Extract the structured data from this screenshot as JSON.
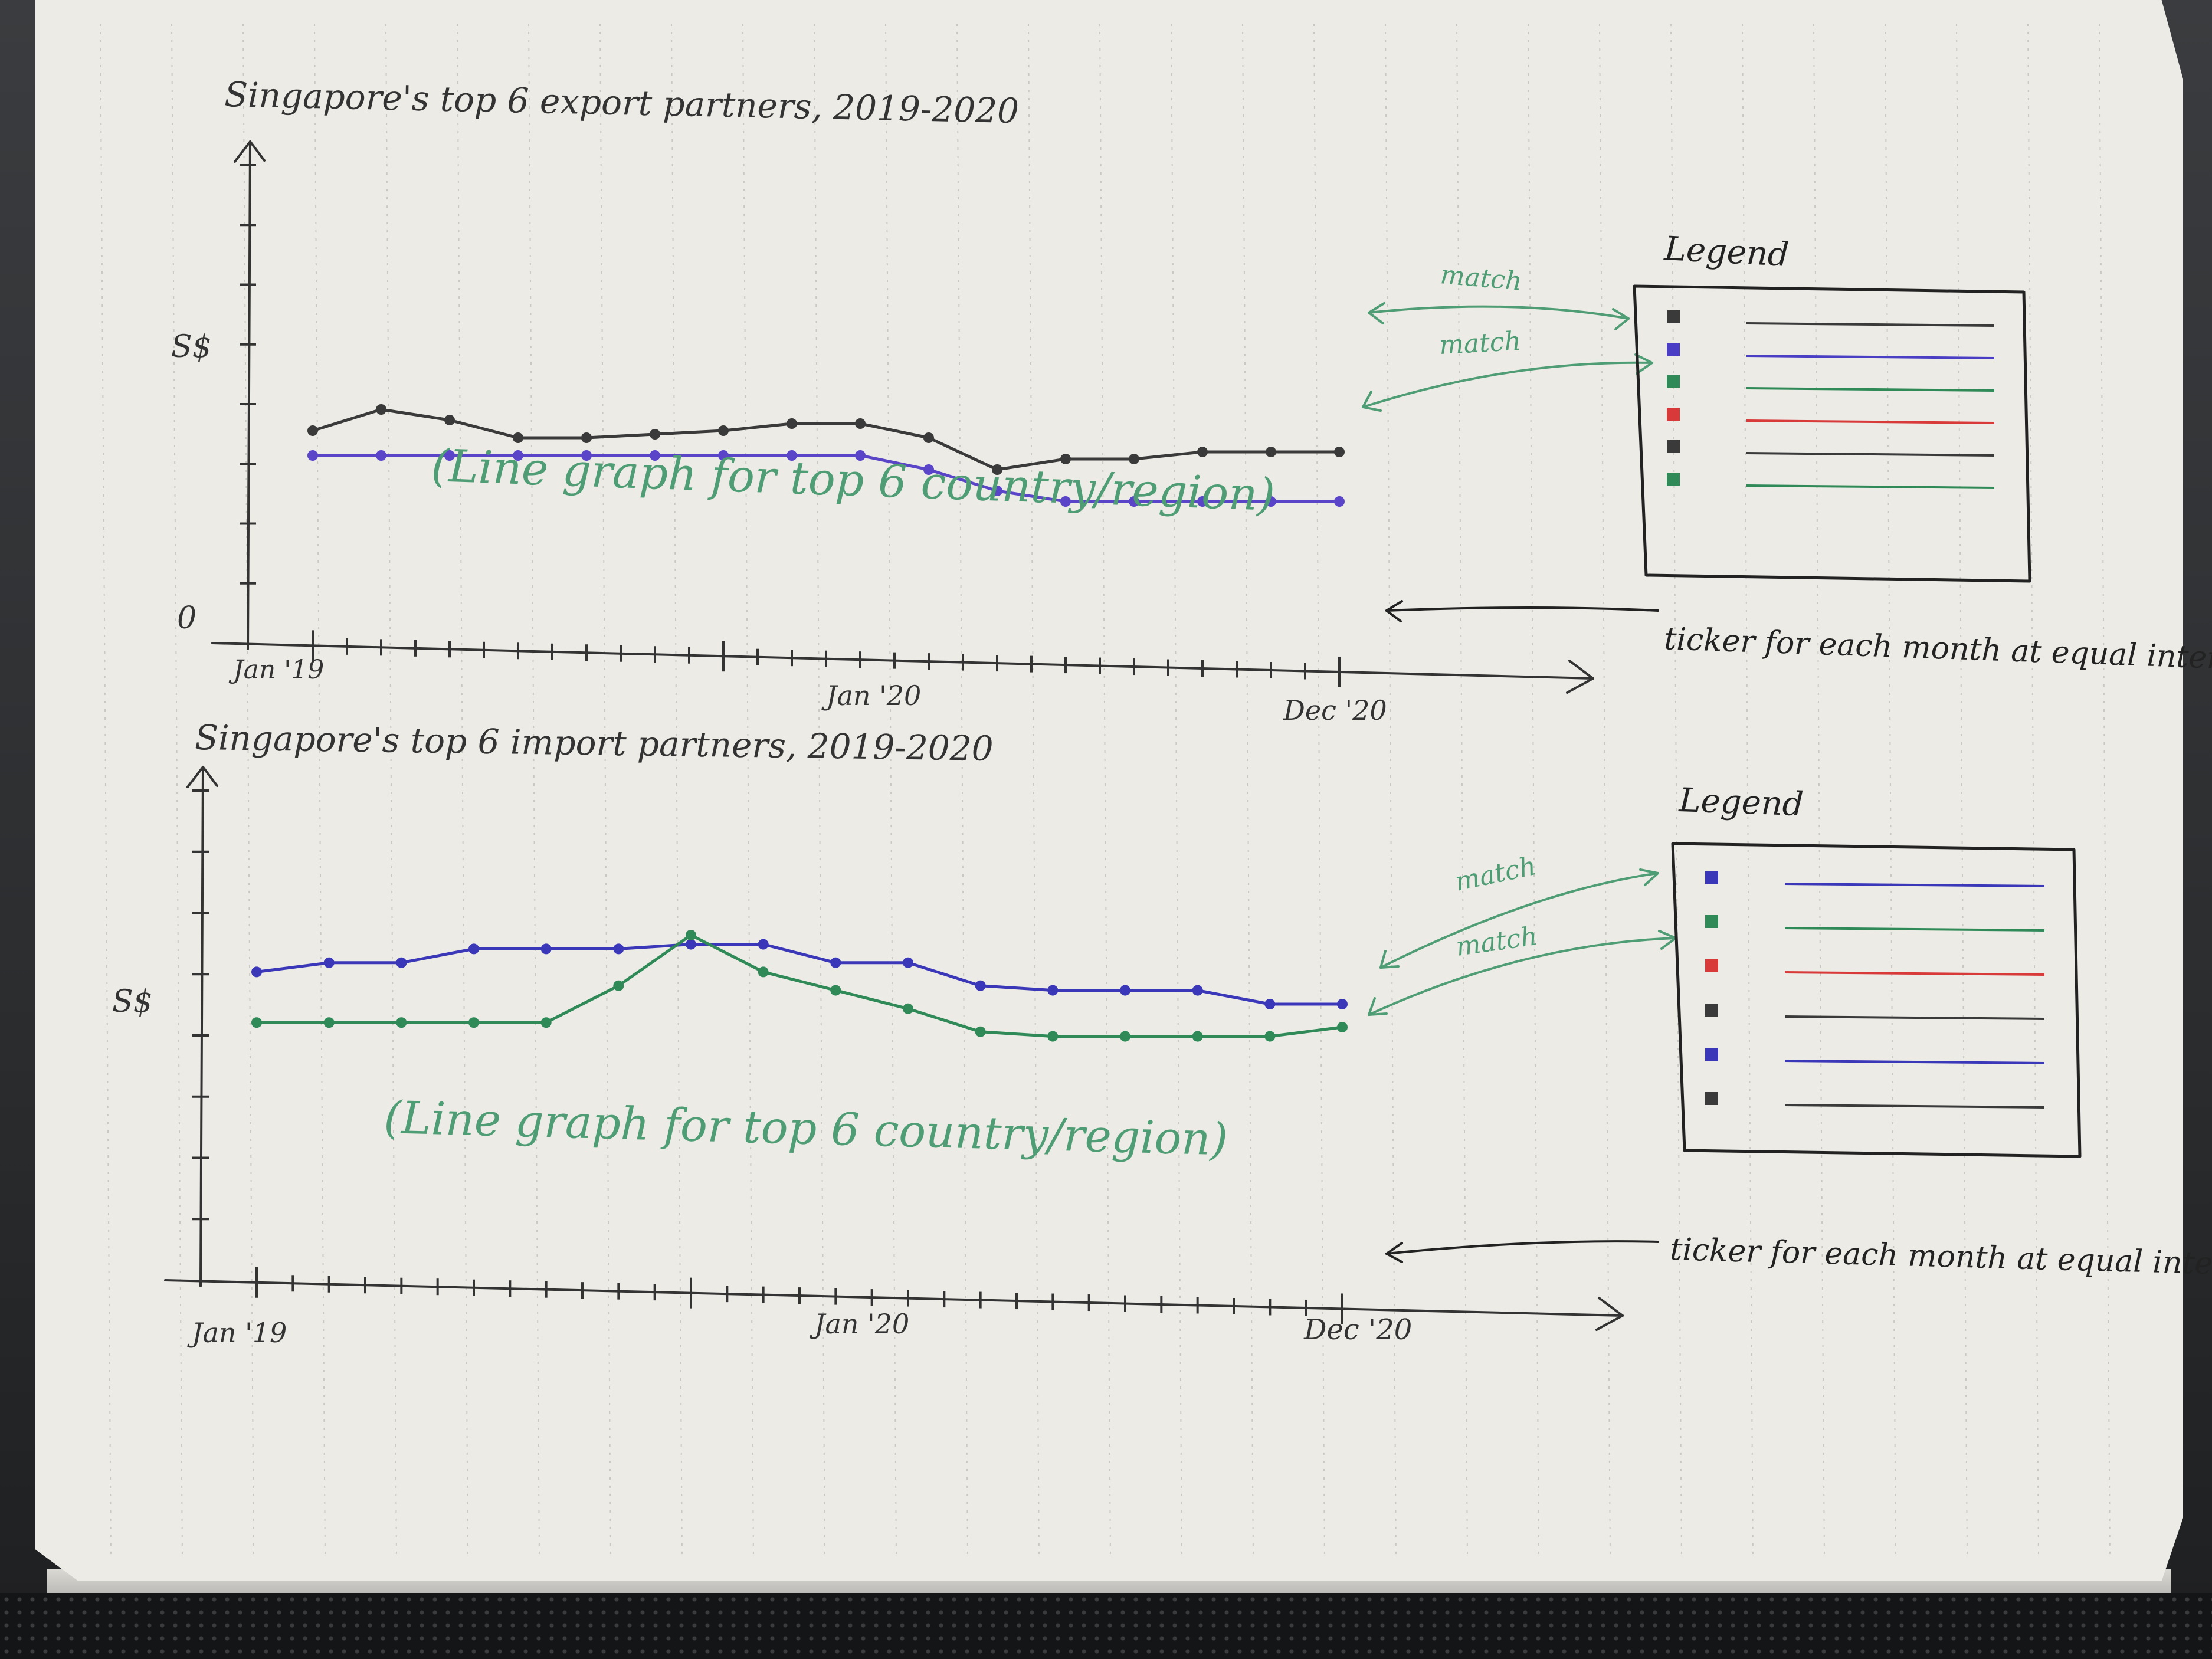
{
  "chart_data": [
    {
      "type": "line",
      "title": "Singapore's top 6 export partners, 2019-2020",
      "ylabel": "S$",
      "y_origin_label": "0",
      "x_tick_labels": [
        "Jan '19",
        "Jan '20",
        "Dec '20"
      ],
      "ylim": [
        0,
        10
      ],
      "x": [
        0,
        2,
        4,
        6,
        8,
        10,
        12,
        14,
        16,
        18,
        20,
        22,
        24,
        26,
        28,
        30
      ],
      "series": [
        {
          "color": "#3a3a3a",
          "values": [
            6.0,
            6.6,
            6.3,
            5.8,
            5.8,
            5.9,
            6.0,
            6.2,
            6.2,
            5.8,
            4.9,
            5.2,
            5.2,
            5.4,
            5.4,
            5.4
          ]
        },
        {
          "color": "#5a45c8",
          "values": [
            5.3,
            5.3,
            5.3,
            5.3,
            5.3,
            5.3,
            5.3,
            5.3,
            5.3,
            4.9,
            4.3,
            4.0,
            4.0,
            4.0,
            4.0,
            4.0
          ]
        }
      ],
      "note": "(Line graph for top 6 country/region)",
      "callouts": [
        "match",
        "match",
        "ticker for each month at equal intervals"
      ],
      "legend": {
        "title": "Legend",
        "placement": "right",
        "colors": [
          "#3a3a3a",
          "#4a3ec4",
          "#2f8a58",
          "#d83a3a",
          "#3a3a3a",
          "#2f8a58"
        ]
      }
    },
    {
      "type": "line",
      "title": "Singapore's top 6 import partners, 2019-2020",
      "ylabel": "S$",
      "x_tick_labels": [
        "Jan '19",
        "Jan '20",
        "Dec '20"
      ],
      "ylim": [
        0,
        10
      ],
      "x": [
        0,
        2,
        4,
        6,
        8,
        10,
        12,
        14,
        16,
        18,
        20,
        22,
        24,
        26,
        28,
        30
      ],
      "series": [
        {
          "color": "#3a37b8",
          "values": [
            6.7,
            6.9,
            6.9,
            7.2,
            7.2,
            7.2,
            7.3,
            7.3,
            6.9,
            6.9,
            6.4,
            6.3,
            6.3,
            6.3,
            6.0,
            6.0
          ]
        },
        {
          "color": "#2f8a58",
          "values": [
            5.6,
            5.6,
            5.6,
            5.6,
            5.6,
            6.4,
            7.5,
            6.7,
            6.3,
            5.9,
            5.4,
            5.3,
            5.3,
            5.3,
            5.3,
            5.5
          ]
        }
      ],
      "note": "(Line graph for top 6 country/region)",
      "callouts": [
        "match",
        "match",
        "ticker for each month at equal intervals."
      ],
      "legend": {
        "title": "Legend",
        "placement": "right",
        "colors": [
          "#3a37b8",
          "#2f8a58",
          "#d83a3a",
          "#3a3a3a",
          "#3a37b8",
          "#3a3a3a"
        ]
      }
    }
  ]
}
